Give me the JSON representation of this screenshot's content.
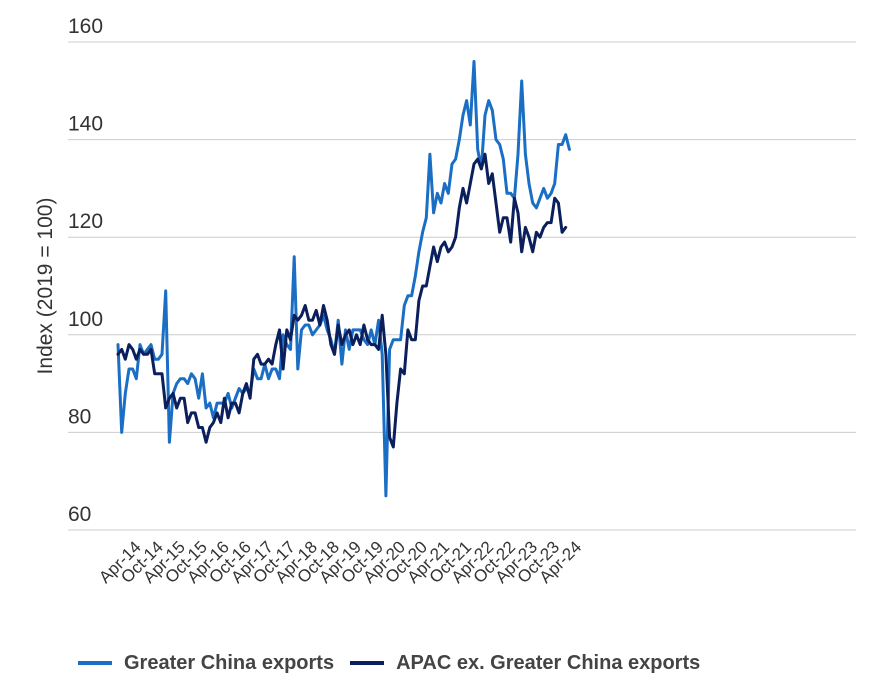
{
  "colors": {
    "greater_china": "#1a6fc4",
    "apac_ex_china": "#0b1f5c",
    "grid": "#cccccc"
  },
  "chart_data": {
    "type": "line",
    "title": "",
    "xlabel": "",
    "ylabel": "Index (2019 = 100)",
    "ylim": [
      60,
      160
    ],
    "yticks": [
      60,
      80,
      100,
      120,
      140,
      160
    ],
    "x_start": "Apr-14",
    "x_tick_labels": [
      "Apr-14",
      "Oct-14",
      "Apr-15",
      "Oct-15",
      "Apr-16",
      "Oct-16",
      "Apr-17",
      "Oct-17",
      "Apr-18",
      "Oct-18",
      "Apr-19",
      "Oct-19",
      "Apr-20",
      "Oct-20",
      "Apr-21",
      "Oct-21",
      "Apr-22",
      "Oct-22",
      "Apr-23",
      "Oct-23",
      "Apr-24"
    ],
    "grid": "horizontal",
    "legend_position": "bottom",
    "series": [
      {
        "name": "Greater China exports",
        "color": "#1a6fc4",
        "values": [
          98,
          80,
          88,
          93,
          93,
          91,
          98,
          96,
          97,
          98,
          95,
          95,
          96,
          109,
          78,
          88,
          90,
          91,
          91,
          90,
          92,
          91,
          87,
          92,
          85,
          86,
          83,
          86,
          86,
          86,
          88,
          85,
          87,
          89,
          88,
          89,
          88,
          93,
          91,
          91,
          94,
          91,
          93,
          93,
          91,
          100,
          98,
          97,
          116,
          93,
          101,
          102,
          102,
          100,
          101,
          102,
          104,
          101,
          99,
          96,
          103,
          94,
          101,
          97,
          101,
          101,
          101,
          99,
          98,
          101,
          98,
          103,
          96,
          67,
          97,
          99,
          99,
          99,
          106,
          108,
          108,
          112,
          117,
          121,
          124,
          137,
          125,
          129,
          127,
          131,
          129,
          135,
          136,
          140,
          145,
          148,
          143,
          156,
          138,
          134,
          145,
          148,
          146,
          140,
          139,
          136,
          129,
          129,
          128,
          137,
          152,
          137,
          131,
          127,
          126,
          128,
          130,
          128,
          129,
          131,
          139,
          139,
          141,
          138
        ]
      },
      {
        "name": "APAC ex. Greater China exports",
        "color": "#0b1f5c",
        "values": [
          96,
          97,
          95,
          98,
          97,
          95,
          97,
          96,
          96,
          97,
          92,
          92,
          92,
          85,
          87,
          88,
          85,
          87,
          87,
          82,
          84,
          84,
          81,
          81,
          78,
          81,
          82,
          84,
          82,
          87,
          83,
          86,
          86,
          84,
          88,
          90,
          87,
          95,
          96,
          94,
          94,
          95,
          94,
          98,
          101,
          93,
          101,
          99,
          104,
          103,
          104,
          106,
          103,
          103,
          105,
          102,
          106,
          103,
          98,
          96,
          102,
          98,
          100,
          101,
          98,
          100,
          98,
          102,
          99,
          98,
          98,
          97,
          104,
          96,
          79,
          77,
          86,
          93,
          92,
          101,
          99,
          99,
          107,
          110,
          110,
          114,
          118,
          115,
          118,
          119,
          117,
          118,
          120,
          126,
          130,
          127,
          131,
          135,
          136,
          134,
          137,
          131,
          133,
          127,
          121,
          124,
          124,
          119,
          128,
          125,
          117,
          122,
          120,
          117,
          121,
          120,
          122,
          123,
          123,
          128,
          127,
          121,
          122
        ]
      }
    ]
  }
}
